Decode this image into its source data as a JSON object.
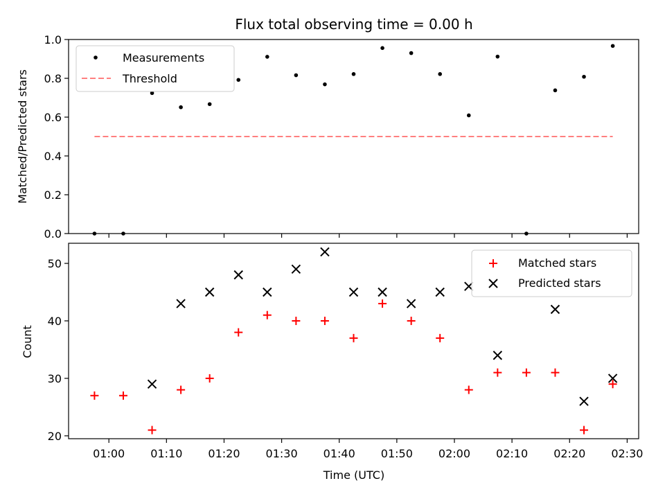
{
  "chart_data": [
    {
      "type": "scatter",
      "title": "Flux total observing time = 0.00 h",
      "xlabel": "",
      "ylabel": "Matched/Predicted stars",
      "ylim": [
        0.0,
        1.0
      ],
      "yticks": [
        0.0,
        0.2,
        0.4,
        0.6,
        0.8,
        1.0
      ],
      "ytick_labels": [
        "0.0",
        "0.2",
        "0.4",
        "0.6",
        "0.8",
        "1.0"
      ],
      "grid": false,
      "legend_position": "upper-left",
      "series": [
        {
          "name": "Measurements",
          "marker": "dot",
          "color": "#000000",
          "x": [
            "00:57:30",
            "01:02:30",
            "01:07:30",
            "01:12:30",
            "01:17:30",
            "01:22:30",
            "01:27:30",
            "01:32:30",
            "01:37:30",
            "01:42:30",
            "01:47:30",
            "01:52:30",
            "01:57:30",
            "02:02:30",
            "02:07:30",
            "02:12:30",
            "02:17:30",
            "02:22:30",
            "02:27:30"
          ],
          "y": [
            0.0,
            0.0,
            0.724,
            0.651,
            0.667,
            0.792,
            0.911,
            0.816,
            0.769,
            0.822,
            0.956,
            0.93,
            0.822,
            0.609,
            0.912,
            0.0,
            0.738,
            0.808,
            0.967
          ]
        },
        {
          "name": "Threshold",
          "style": "dashed-line",
          "color": "#ff7f7f",
          "x": [
            "00:57:30",
            "02:27:30"
          ],
          "y": [
            0.5,
            0.5
          ]
        }
      ]
    },
    {
      "type": "scatter",
      "title": "",
      "xlabel": "Time (UTC)",
      "ylabel": "Count",
      "ylim": [
        19.5,
        53.5
      ],
      "yticks": [
        20,
        30,
        40,
        50
      ],
      "ytick_labels": [
        "20",
        "30",
        "40",
        "50"
      ],
      "xlim": [
        "00:53:00",
        "02:32:00"
      ],
      "xticks": [
        "01:00",
        "01:10",
        "01:20",
        "01:30",
        "01:40",
        "01:50",
        "02:00",
        "02:10",
        "02:20",
        "02:30"
      ],
      "grid": false,
      "legend_position": "upper-right",
      "series": [
        {
          "name": "Matched stars",
          "marker": "plus",
          "color": "#ff0000",
          "x": [
            "00:57:30",
            "01:02:30",
            "01:07:30",
            "01:12:30",
            "01:17:30",
            "01:22:30",
            "01:27:30",
            "01:32:30",
            "01:37:30",
            "01:42:30",
            "01:47:30",
            "01:52:30",
            "01:57:30",
            "02:02:30",
            "02:07:30",
            "02:12:30",
            "02:17:30",
            "02:22:30",
            "02:27:30"
          ],
          "y": [
            27,
            27,
            21,
            28,
            30,
            38,
            41,
            40,
            40,
            37,
            43,
            40,
            37,
            28,
            31,
            31,
            31,
            21,
            29
          ]
        },
        {
          "name": "Predicted stars",
          "marker": "x",
          "color": "#000000",
          "x": [
            "01:07:30",
            "01:12:30",
            "01:17:30",
            "01:22:30",
            "01:27:30",
            "01:32:30",
            "01:37:30",
            "01:42:30",
            "01:47:30",
            "01:52:30",
            "01:57:30",
            "02:02:30",
            "02:07:30",
            "02:17:30",
            "02:22:30",
            "02:27:30"
          ],
          "y": [
            29,
            43,
            45,
            48,
            45,
            49,
            52,
            45,
            45,
            43,
            45,
            46,
            34,
            42,
            26,
            30
          ]
        }
      ]
    }
  ]
}
